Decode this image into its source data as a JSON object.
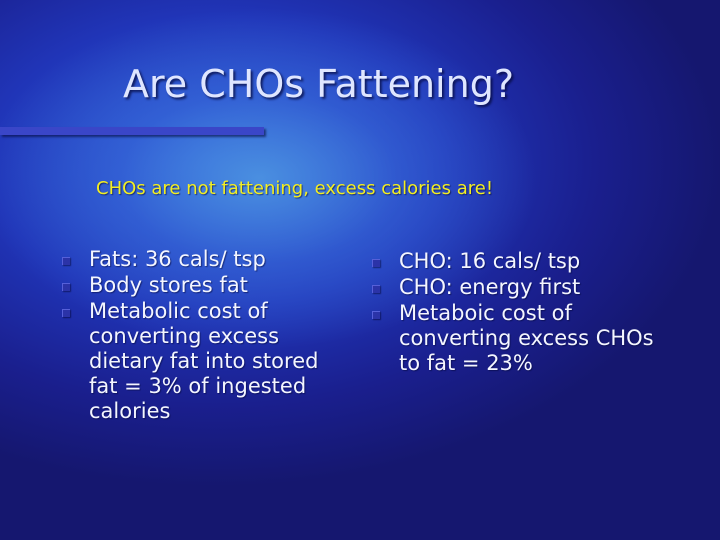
{
  "slide": {
    "title": "Are CHOs Fattening?",
    "subtitle": "CHOs are not fattening, excess calories are!",
    "left_column": [
      "Fats: 36 cals/ tsp",
      "Body stores fat",
      "Metabolic cost of converting excess dietary fat into stored fat = 3% of ingested calories"
    ],
    "right_column": [
      "CHO: 16 cals/ tsp",
      "CHO: energy first",
      "Metaboic cost of converting excess CHOs to fat = 23%"
    ]
  },
  "colors": {
    "background_deep": "#16186e",
    "background_glow": "#4a8fe0",
    "title": "#dfe6ff",
    "subtitle": "#f2ee22",
    "body_text": "#f4f6ff",
    "accent_bar": "#3a46c8",
    "bullet": "#2b33a8"
  },
  "icons": {
    "bullet": "square-bullet-icon"
  }
}
